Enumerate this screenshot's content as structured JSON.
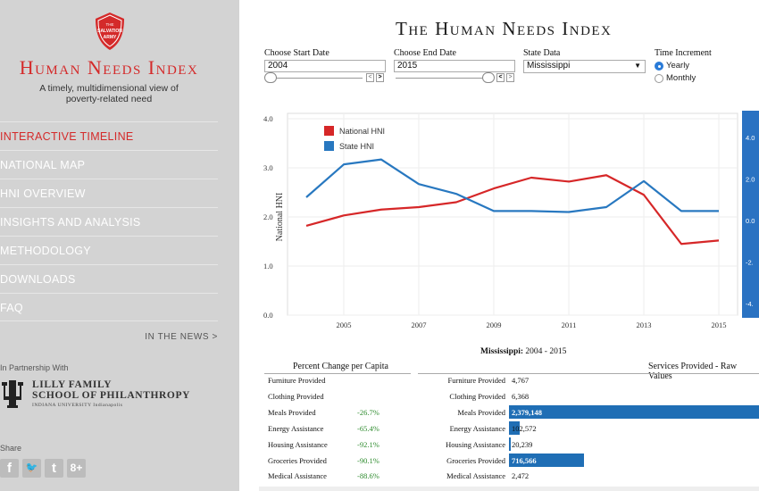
{
  "sidebar": {
    "logo_text": [
      "THE",
      "SALVATION",
      "ARMY"
    ],
    "brand": "Human Needs Index",
    "tagline": "A timely, multidimensional view of poverty-related need",
    "nav": [
      {
        "label": "INTERACTIVE TIMELINE",
        "active": true
      },
      {
        "label": "NATIONAL MAP"
      },
      {
        "label": "HNI OVERVIEW"
      },
      {
        "label": "INSIGHTS AND ANALYSIS"
      },
      {
        "label": "METHODOLOGY"
      },
      {
        "label": "DOWNLOADS"
      },
      {
        "label": "FAQ"
      }
    ],
    "in_the_news": "IN THE NEWS >",
    "partner_label": "In Partnership With",
    "partner_line1": "LILLY FAMILY",
    "partner_line2": "SCHOOL OF PHILANTHROPY",
    "partner_line3": "INDIANA UNIVERSITY   Indianapolis",
    "share_label": "Share",
    "social": [
      {
        "icon": "facebook-icon",
        "glyph": "f"
      },
      {
        "icon": "twitter-icon",
        "glyph": "🐦"
      },
      {
        "icon": "tumblr-icon",
        "glyph": "t"
      },
      {
        "icon": "google-plus-icon",
        "glyph": "8+"
      }
    ]
  },
  "main": {
    "title": "The Human Needs Index",
    "controls": {
      "start_label": "Choose Start Date",
      "start_value": "2004",
      "end_label": "Choose End Date",
      "end_value": "2015",
      "state_label": "State Data",
      "state_value": "Mississippi",
      "increment_label": "Time Increment",
      "increment_options": [
        "Yearly",
        "Monthly"
      ],
      "increment_selected": "Yearly"
    },
    "chart_subtitle_state": "Mississippi:",
    "chart_subtitle_range": " 2004 - 2015",
    "left_table": {
      "header": "Percent Change per Capita",
      "rows": [
        {
          "label": "Furniture Provided",
          "value": ""
        },
        {
          "label": "Clothing Provided",
          "value": ""
        },
        {
          "label": "Meals Provided",
          "value": "-26.7%"
        },
        {
          "label": "Energy Assistance",
          "value": "-65.4%"
        },
        {
          "label": "Housing Assistance",
          "value": "-92.1%"
        },
        {
          "label": "Groceries Provided",
          "value": "-90.1%"
        },
        {
          "label": "Medical Assistance",
          "value": "-88.6%"
        }
      ]
    },
    "right_table": {
      "header": "Services Provided - Raw Values",
      "rows": [
        {
          "label": "Furniture Provided",
          "value": "4,767",
          "raw": 4767
        },
        {
          "label": "Clothing Provided",
          "value": "6,368",
          "raw": 6368
        },
        {
          "label": "Meals Provided",
          "value": "2,379,148",
          "raw": 2379148
        },
        {
          "label": "Energy Assistance",
          "value": "102,572",
          "raw": 102572
        },
        {
          "label": "Housing Assistance",
          "value": "20,239",
          "raw": 20239
        },
        {
          "label": "Groceries Provided",
          "value": "716,566",
          "raw": 716566
        },
        {
          "label": "Medical Assistance",
          "value": "2,472",
          "raw": 2472
        }
      ]
    }
  },
  "colors": {
    "national": "#d62728",
    "state": "#2878c0",
    "bar": "#1f6eb5",
    "brand_red": "#d42a2a"
  },
  "chart_data": {
    "type": "line",
    "title": "",
    "xlabel": "",
    "ylabel": "National HNI",
    "x": [
      2004,
      2005,
      2006,
      2007,
      2008,
      2009,
      2010,
      2011,
      2012,
      2013,
      2014,
      2015
    ],
    "x_ticks": [
      "2005",
      "2007",
      "2009",
      "2011",
      "2013",
      "2015"
    ],
    "y_ticks": [
      "0.0",
      "1.0",
      "2.0",
      "3.0",
      "4.0"
    ],
    "ylim": [
      0,
      4.0
    ],
    "right_axis_ticks": [
      "4.0",
      "2.0",
      "0.0",
      "-2.",
      "-4."
    ],
    "legend_position": "top-left",
    "grid": true,
    "series": [
      {
        "name": "National HNI",
        "values": [
          1.82,
          2.03,
          2.15,
          2.2,
          2.3,
          2.58,
          2.8,
          2.72,
          2.85,
          2.45,
          1.45,
          1.52
        ]
      },
      {
        "name": "State HNI",
        "values": [
          2.4,
          3.07,
          3.17,
          2.67,
          2.47,
          2.12,
          2.12,
          2.1,
          2.2,
          2.73,
          2.12,
          2.12
        ]
      }
    ]
  }
}
